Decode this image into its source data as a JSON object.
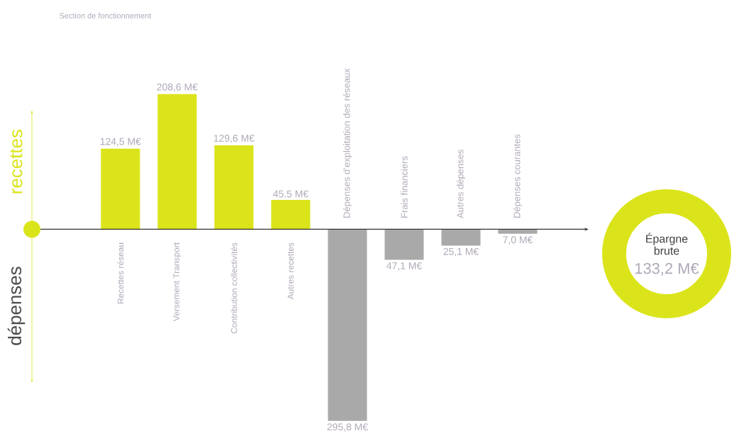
{
  "chart_data": {
    "type": "bar",
    "title": "Section de fonctionnement",
    "categories": [
      "Recettes réseau",
      "Versement Transport",
      "Contribution collectivités",
      "Autres recettes",
      "Dépenses d’exploitation des réseaux",
      "Frais financiers",
      "Autres dépenses",
      "Dépenses courantes"
    ],
    "values": [
      124.5,
      208.6,
      129.6,
      45.5,
      -295.8,
      -47.1,
      -25.1,
      -7.0
    ],
    "value_labels": [
      "124,5 M€",
      "208,6 M€",
      "129,6 M€",
      "45.5 M€",
      null,
      null,
      null,
      null
    ],
    "colors": [
      "#dbe41a",
      "#dbe41a",
      "#dbe41a",
      "#dbe41a",
      "#a9a9a9",
      "#a9a9a9",
      "#a9a9a9",
      "#a9a9a9"
    ],
    "annotations": [
      "recettes",
      "dépenses",
      "Épargne brute",
      "133,2 M€",
      {
        "text": "295,8 M€",
        "x": "Dépenses d’exploitation des réseaux",
        "y": -295.8
      },
      {
        "text": "47,1 M€",
        "x": "Frais financiers",
        "y": -47.1
      },
      {
        "text": "25,1 M€",
        "x": "Autres dépenses",
        "y": -25.1
      },
      {
        "text": "7,0 M€",
        "x": "Dépenses courantes",
        "y": -7.0
      }
    ]
  }
}
